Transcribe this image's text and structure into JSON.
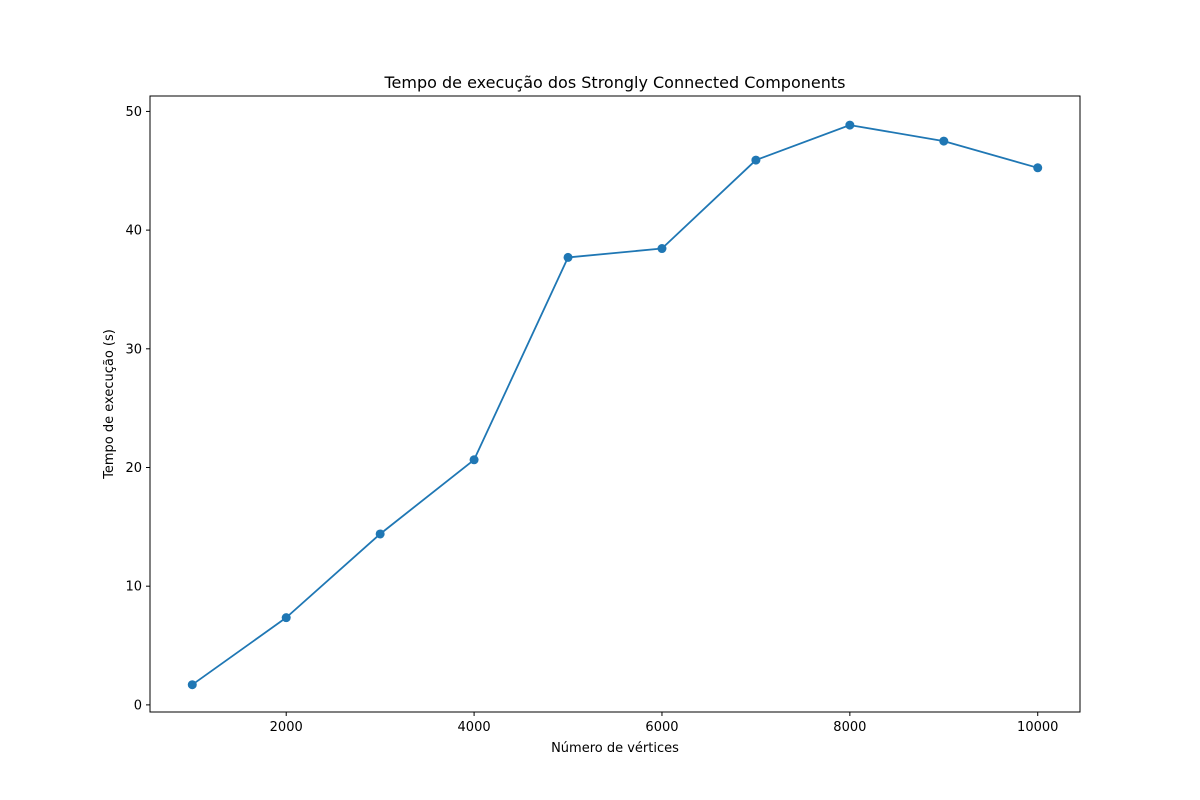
{
  "chart_data": {
    "type": "line",
    "title": "Tempo de execução dos Strongly Connected Components",
    "xlabel": "Número de vértices",
    "ylabel": "Tempo de execução (s)",
    "x": [
      1000,
      2000,
      3000,
      4000,
      5000,
      6000,
      7000,
      8000,
      9000,
      10000
    ],
    "series": [
      {
        "values": [
          1.7,
          7.35,
          14.4,
          20.65,
          37.7,
          38.45,
          45.9,
          48.85,
          47.5,
          45.25
        ],
        "color": "#1f77b4",
        "marker": "circle"
      }
    ],
    "xlim": [
      550,
      10450
    ],
    "ylim": [
      -0.6,
      51.3
    ],
    "xticks": [
      2000,
      4000,
      6000,
      8000,
      10000
    ],
    "xtick_labels": [
      "2000",
      "4000",
      "6000",
      "8000",
      "10000"
    ],
    "yticks": [
      0,
      10,
      20,
      30,
      40,
      50
    ],
    "ytick_labels": [
      "0",
      "10",
      "20",
      "30",
      "40",
      "50"
    ],
    "grid": false,
    "legend": false
  }
}
